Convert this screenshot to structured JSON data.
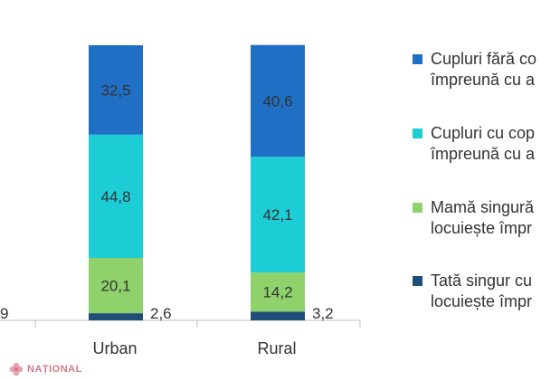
{
  "chart_data": {
    "type": "bar",
    "stacked": true,
    "categories": [
      "Urban",
      "Rural"
    ],
    "series": [
      {
        "name": "Tată singur cu copii care locuiește împreună cu aceștia",
        "color": "#1f4e79",
        "values": [
          2.6,
          3.2
        ]
      },
      {
        "name": "Mamă singură cu copii care locuiește împreună cu aceștia",
        "color": "#8fd16a",
        "values": [
          20.1,
          14.2
        ]
      },
      {
        "name": "Cupluri cu copii care locuiesc împreună cu aceștia",
        "color": "#1dcdd6",
        "values": [
          44.8,
          42.1
        ]
      },
      {
        "name": "Cupluri fără copii care locuiesc împreună cu aceștia",
        "color": "#1f6fc5",
        "values": [
          32.5,
          40.6
        ]
      }
    ],
    "clipped_label": "9",
    "ylim": [
      0,
      100
    ]
  },
  "legend": [
    {
      "line1": "Cupluri fără co",
      "line2": "împreună cu a",
      "color": "#1f6fc5"
    },
    {
      "line1": "Cupluri cu cop",
      "line2": "împreună cu a",
      "color": "#1dcdd6"
    },
    {
      "line1": "Mamă singură",
      "line2": "locuiește împr",
      "color": "#8fd16a"
    },
    {
      "line1": "Tată singur cu",
      "line2": "locuiește împr",
      "color": "#1f4e79"
    }
  ],
  "watermark": {
    "text": "NAȚIONAL",
    "icon": "flower-icon"
  }
}
